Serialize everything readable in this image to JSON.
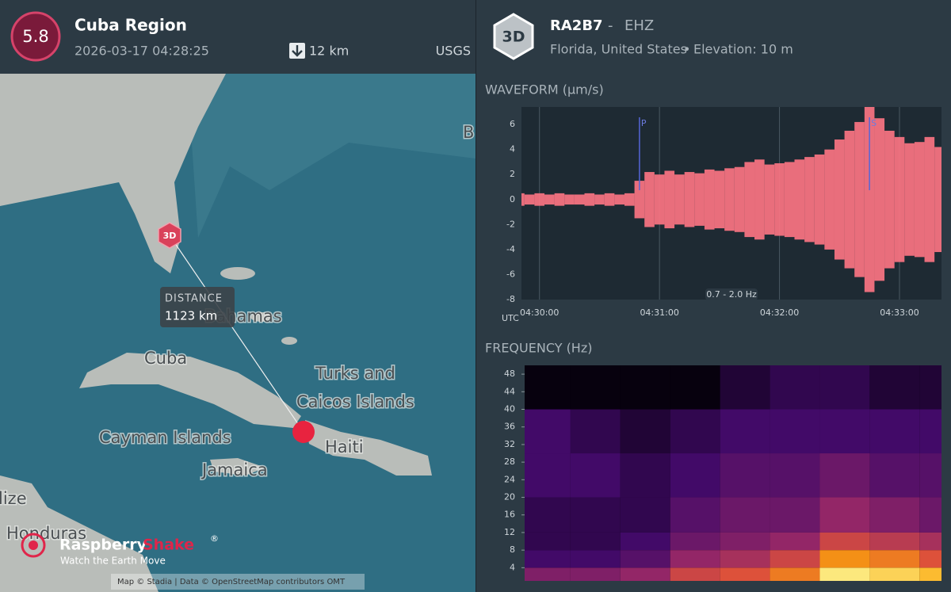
{
  "event": {
    "magnitude": "5.8",
    "region": "Cuba Region",
    "time": "2026-03-17 04:28:25",
    "depth": "12 km",
    "source": "USGS"
  },
  "station": {
    "badge": "3D",
    "code": "RA2B7",
    "separator": "-",
    "channel": "EHZ",
    "location": "Florida, United States",
    "bullet": "•",
    "elevation": "Elevation: 10 m"
  },
  "map": {
    "labels": [
      "Cuba",
      "Turks and",
      "Caicos Islands",
      "Cayman Islands",
      "Haiti",
      "Jamaica",
      "Bahamas",
      "Honduras",
      "lize",
      "B"
    ],
    "station_marker": "3D",
    "distance_title": "DISTANCE",
    "distance": "1123 km",
    "logo": {
      "name": "Raspberry",
      "name2": "Shake",
      "mark": "®",
      "tagline": "Watch the Earth Move"
    },
    "attribution": "Map © Stadia | Data © OpenStreetMap contributors OMT"
  },
  "chart_data": [
    {
      "type": "waveform",
      "title": "WAVEFORM (µm/s)",
      "x_label": "UTC",
      "filter": "0.7 - 2.0 Hz",
      "color": "#ff7584",
      "xlim": [
        "04:29:51",
        "04:33:21"
      ],
      "xticks": [
        "04:30:00",
        "04:31:00",
        "04:32:00",
        "04:33:00"
      ],
      "ylim": [
        -8,
        7.4
      ],
      "yticks": [
        6,
        4,
        2,
        0,
        -2,
        -4,
        -6,
        -8
      ],
      "grid": true,
      "phases": [
        {
          "label": "P",
          "time": "04:30:50"
        },
        {
          "label": "S",
          "time": "04:32:45"
        }
      ],
      "x": [
        "04:29:50",
        "04:29:55",
        "04:30:00",
        "04:30:05",
        "04:30:10",
        "04:30:15",
        "04:30:20",
        "04:30:25",
        "04:30:30",
        "04:30:35",
        "04:30:40",
        "04:30:45",
        "04:30:50",
        "04:30:55",
        "04:31:00",
        "04:31:05",
        "04:31:10",
        "04:31:15",
        "04:31:20",
        "04:31:25",
        "04:31:30",
        "04:31:35",
        "04:31:40",
        "04:31:45",
        "04:31:50",
        "04:31:55",
        "04:32:00",
        "04:32:05",
        "04:32:10",
        "04:32:15",
        "04:32:20",
        "04:32:25",
        "04:32:30",
        "04:32:35",
        "04:32:40",
        "04:32:45",
        "04:32:50",
        "04:32:55",
        "04:33:00",
        "04:33:05",
        "04:33:10",
        "04:33:15",
        "04:33:20"
      ],
      "values": [
        0.5,
        0.4,
        0.5,
        0.4,
        0.5,
        0.4,
        0.4,
        0.5,
        0.4,
        0.5,
        0.4,
        0.5,
        1.5,
        2.2,
        2.0,
        2.3,
        2.0,
        2.2,
        2.1,
        2.4,
        2.3,
        2.5,
        2.6,
        3.0,
        3.2,
        2.8,
        2.9,
        3.0,
        3.2,
        3.4,
        3.6,
        4.0,
        4.8,
        5.5,
        6.2,
        7.4,
        6.5,
        5.5,
        5.0,
        4.5,
        4.6,
        5.0,
        4.2
      ]
    },
    {
      "type": "heatmap",
      "title": "FREQUENCY (Hz)",
      "xlim": [
        "04:29:52",
        "04:33:21"
      ],
      "ylim": [
        1,
        50
      ],
      "yticks": [
        4,
        8,
        12,
        16,
        20,
        24,
        28,
        32,
        36,
        40,
        44,
        48
      ],
      "x_bins": [
        "04:29:52",
        "04:30:15",
        "04:30:40",
        "04:31:05",
        "04:31:30",
        "04:31:55",
        "04:32:20",
        "04:32:45",
        "04:33:10",
        "04:33:21"
      ],
      "y_bins": [
        1,
        4,
        8,
        12,
        20,
        30,
        40,
        50
      ],
      "values": [
        [
          0.35,
          0.35,
          0.4,
          0.55,
          0.6,
          0.7,
          0.95,
          0.9,
          0.85
        ],
        [
          0.2,
          0.2,
          0.25,
          0.4,
          0.45,
          0.55,
          0.75,
          0.7,
          0.6
        ],
        [
          0.15,
          0.15,
          0.2,
          0.3,
          0.35,
          0.4,
          0.55,
          0.5,
          0.45
        ],
        [
          0.15,
          0.15,
          0.15,
          0.25,
          0.3,
          0.3,
          0.4,
          0.35,
          0.3
        ],
        [
          0.2,
          0.2,
          0.15,
          0.2,
          0.25,
          0.25,
          0.3,
          0.25,
          0.25
        ],
        [
          0.2,
          0.15,
          0.1,
          0.15,
          0.2,
          0.2,
          0.2,
          0.2,
          0.2
        ],
        [
          0.02,
          0.02,
          0.02,
          0.02,
          0.1,
          0.15,
          0.15,
          0.1,
          0.1
        ]
      ]
    }
  ]
}
